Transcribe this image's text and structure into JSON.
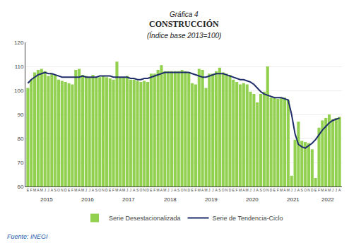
{
  "chart_data": {
    "type": "bar",
    "title_lines": [
      "Gráfica 4",
      "CONSTRUCCIÓN",
      "(Índice base 2013=100)"
    ],
    "categories": [
      "E",
      "F",
      "M",
      "A",
      "M",
      "J",
      "J",
      "A",
      "S",
      "O",
      "N",
      "D",
      "E",
      "F",
      "M",
      "A",
      "M",
      "J",
      "J",
      "A",
      "S",
      "O",
      "N",
      "D",
      "E",
      "F",
      "M",
      "A",
      "M",
      "J",
      "J",
      "A",
      "S",
      "O",
      "N",
      "D",
      "E",
      "F",
      "M",
      "A",
      "M",
      "J",
      "J",
      "A",
      "S",
      "O",
      "N",
      "D",
      "E",
      "F",
      "M",
      "A",
      "M",
      "J",
      "J",
      "A",
      "S",
      "O",
      "N",
      "D",
      "E",
      "F",
      "M",
      "A",
      "M",
      "J",
      "J",
      "A",
      "S",
      "O",
      "N",
      "D",
      "E",
      "F",
      "M",
      "A",
      "M",
      "J",
      "J",
      "A",
      "S",
      "O",
      "N",
      "D",
      "E",
      "F",
      "M",
      "A",
      "M",
      "J",
      "J",
      "A"
    ],
    "groups": [
      {
        "label": "2015",
        "count": 12
      },
      {
        "label": "2016",
        "count": 12
      },
      {
        "label": "2017",
        "count": 12
      },
      {
        "label": "2018",
        "count": 12
      },
      {
        "label": "2019",
        "count": 12
      },
      {
        "label": "2020",
        "count": 12
      },
      {
        "label": "2021",
        "count": 12
      },
      {
        "label": "2022",
        "count": 8
      }
    ],
    "series": [
      {
        "name": "Serie Desestacionalizada",
        "type": "bar",
        "color": "#92d050",
        "values": [
          101.0,
          104.5,
          107.5,
          108.5,
          109.0,
          108.0,
          106.0,
          107.0,
          106.5,
          104.5,
          104.0,
          103.5,
          103.0,
          102.5,
          108.5,
          109.0,
          106.5,
          106.0,
          105.5,
          106.5,
          105.5,
          105.5,
          106.0,
          105.5,
          105.0,
          104.5,
          112.0,
          105.5,
          105.5,
          106.0,
          104.5,
          104.5,
          104.0,
          103.5,
          104.0,
          103.5,
          107.0,
          107.0,
          108.5,
          110.5,
          108.0,
          108.0,
          108.0,
          108.0,
          108.0,
          108.5,
          108.0,
          107.5,
          103.0,
          102.5,
          109.0,
          108.5,
          101.0,
          107.0,
          107.0,
          108.0,
          109.5,
          107.5,
          107.0,
          106.5,
          104.5,
          103.5,
          102.5,
          103.0,
          102.5,
          99.5,
          98.5,
          95.0,
          98.5,
          99.5,
          110.0,
          97.0,
          97.0,
          96.5,
          97.0,
          97.0,
          96.0,
          64.5,
          79.5,
          87.0,
          79.0,
          78.5,
          78.0,
          75.5,
          63.5,
          84.5,
          87.5,
          88.5,
          90.0,
          88.0,
          88.5,
          89.0
        ]
      },
      {
        "name": "Serie de Tendencia-Ciclo",
        "type": "line",
        "color": "#1f2d6b",
        "values": [
          103.0,
          104.5,
          105.5,
          106.5,
          107.0,
          107.5,
          107.0,
          107.0,
          106.5,
          106.0,
          105.5,
          105.5,
          105.5,
          105.5,
          105.5,
          105.5,
          106.0,
          105.5,
          105.5,
          105.5,
          105.5,
          106.0,
          106.0,
          106.0,
          106.0,
          105.5,
          105.5,
          105.5,
          105.5,
          105.5,
          105.0,
          105.0,
          104.5,
          104.5,
          105.0,
          105.0,
          105.5,
          106.0,
          106.5,
          107.0,
          107.5,
          107.5,
          107.5,
          107.5,
          107.5,
          107.5,
          107.5,
          107.5,
          107.0,
          106.5,
          106.0,
          105.5,
          105.5,
          106.0,
          106.5,
          107.0,
          107.0,
          107.0,
          106.5,
          106.0,
          105.5,
          105.0,
          104.5,
          104.5,
          104.0,
          103.5,
          102.5,
          101.0,
          99.5,
          98.5,
          98.0,
          97.5,
          97.0,
          97.0,
          97.0,
          96.5,
          96.0,
          90.0,
          82.0,
          77.5,
          76.5,
          76.0,
          77.0,
          78.0,
          79.5,
          81.5,
          83.5,
          85.0,
          86.5,
          87.5,
          88.0,
          88.5
        ]
      }
    ],
    "ylim": [
      60,
      120
    ],
    "yticks": [
      60,
      70,
      80,
      90,
      100,
      110,
      120
    ],
    "grid": "y",
    "legend": "bottom",
    "source": "Fuente: INEGI",
    "source_color": "#2255aa"
  }
}
